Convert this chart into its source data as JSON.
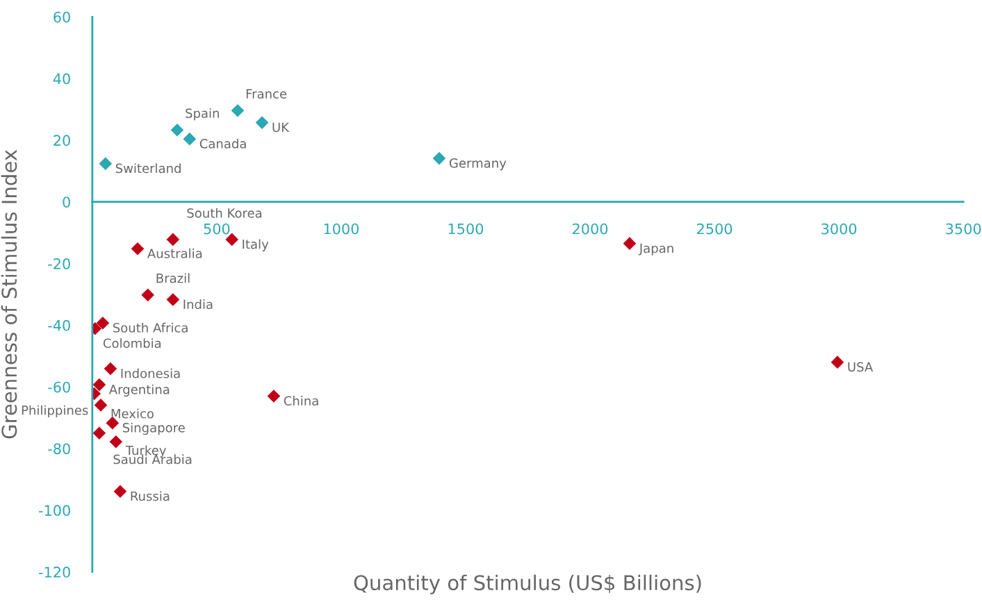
{
  "chart_data": {
    "type": "scatter",
    "xlabel": "Quantity of Stimulus (US$ Billions)",
    "ylabel": "Greenness of Stimulus Index",
    "marker": "diamond",
    "grid": false,
    "legend": false,
    "xlim": [
      0,
      3500
    ],
    "ylim": [
      -120,
      60
    ],
    "xticks": [
      500,
      1000,
      1500,
      2000,
      2500,
      3000,
      3500
    ],
    "yticks": [
      -120,
      -100,
      -80,
      -60,
      -40,
      -20,
      0,
      20,
      40,
      60
    ],
    "series": [
      {
        "color": "#2aa8b3",
        "x": [
          53,
          341,
          391,
          584,
          682,
          1394
        ],
        "values": [
          12.4,
          23.3,
          20.4,
          29.6,
          25.7,
          14.1
        ]
      },
      {
        "color": "#c00018",
        "x": [
          182,
          324,
          561,
          2159,
          223,
          324,
          42,
          11,
          73,
          2994,
          28,
          8,
          34,
          729,
          81,
          28,
          95,
          112
        ],
        "values": [
          -15.2,
          -12.2,
          -12.2,
          -13.5,
          -30.2,
          -31.7,
          -39.3,
          -41.1,
          -54.1,
          -52,
          -59.3,
          -62.2,
          -65.9,
          -63,
          -71.7,
          -75,
          -77.8,
          -93.9
        ]
      }
    ],
    "annotations": [
      {
        "text": "Switerland",
        "x": 53,
        "y": 12.4
      },
      {
        "text": "Spain",
        "x": 341,
        "y": 23.3
      },
      {
        "text": "Canada",
        "x": 391,
        "y": 20.4
      },
      {
        "text": "France",
        "x": 584,
        "y": 29.6
      },
      {
        "text": "UK",
        "x": 682,
        "y": 25.7
      },
      {
        "text": "Germany",
        "x": 1394,
        "y": 14.1
      },
      {
        "text": "Australia",
        "x": 182,
        "y": -15.2
      },
      {
        "text": "South Korea",
        "x": 324,
        "y": -12.2
      },
      {
        "text": "Italy",
        "x": 561,
        "y": -12.2
      },
      {
        "text": "Japan",
        "x": 2159,
        "y": -13.5
      },
      {
        "text": "Brazil",
        "x": 223,
        "y": -30.2
      },
      {
        "text": "India",
        "x": 324,
        "y": -31.7
      },
      {
        "text": "South Africa",
        "x": 42,
        "y": -39.3
      },
      {
        "text": "Colombia",
        "x": 11,
        "y": -41.1
      },
      {
        "text": "Indonesia",
        "x": 73,
        "y": -54.1
      },
      {
        "text": "USA",
        "x": 2994,
        "y": -52
      },
      {
        "text": "Argentina",
        "x": 28,
        "y": -59.3
      },
      {
        "text": "Philippines",
        "x": 8,
        "y": -62.2
      },
      {
        "text": "Mexico",
        "x": 34,
        "y": -65.9
      },
      {
        "text": "China",
        "x": 729,
        "y": -63
      },
      {
        "text": "Singapore",
        "x": 81,
        "y": -71.7
      },
      {
        "text": "Saudi Arabia",
        "x": 28,
        "y": -75
      },
      {
        "text": "Turkey",
        "x": 95,
        "y": -77.8
      },
      {
        "text": "Russia",
        "x": 112,
        "y": -93.9
      }
    ]
  }
}
